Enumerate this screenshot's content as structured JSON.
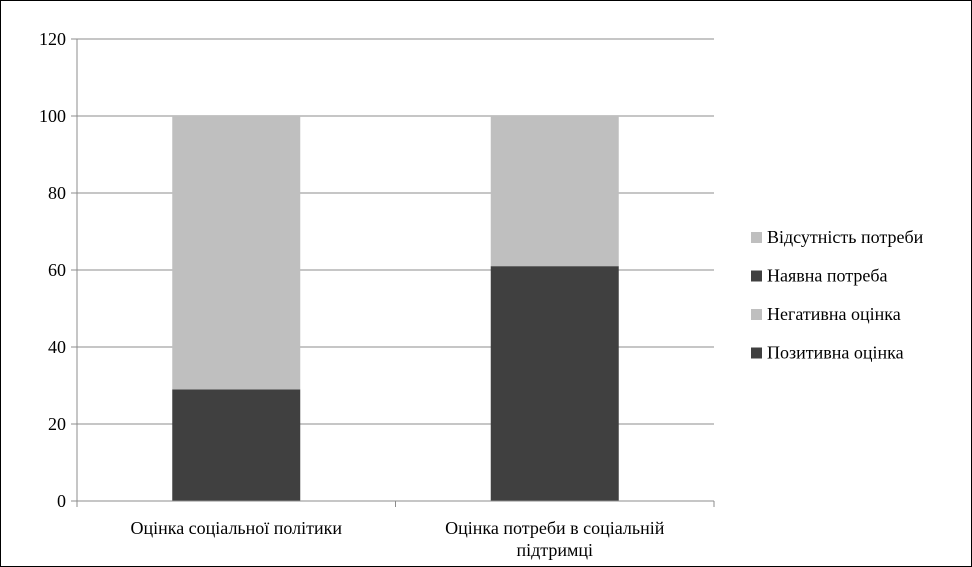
{
  "chart_data": {
    "type": "bar",
    "stacked": true,
    "categories": [
      [
        "Оцінка соціальної політики"
      ],
      [
        "Оцінка потреби в соціальній",
        "підтримці"
      ]
    ],
    "series": [
      {
        "name": "Позитивна оцінка",
        "values": [
          29,
          null
        ],
        "color": "#404040"
      },
      {
        "name": "Негативна оцінка",
        "values": [
          71,
          null
        ],
        "color": "#bfbfbf"
      },
      {
        "name": "Наявна потреба",
        "values": [
          null,
          61
        ],
        "color": "#404040"
      },
      {
        "name": "Відсутність потреби",
        "values": [
          null,
          39
        ],
        "color": "#bfbfbf"
      }
    ],
    "ylim": [
      0,
      120
    ],
    "yticks": [
      0,
      20,
      40,
      60,
      80,
      100,
      120
    ],
    "grid": true,
    "legend": "right",
    "legend_order": [
      "Відсутність потреби",
      "Наявна потреба",
      "Негативна оцінка",
      "Позитивна оцінка"
    ]
  }
}
